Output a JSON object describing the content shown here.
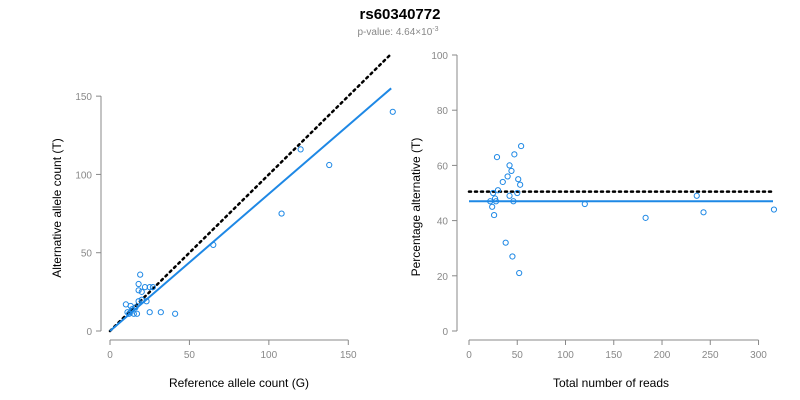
{
  "chart_data": [
    {
      "type": "scatter",
      "title": "rs60340772",
      "subtitle_prefix": "p-value: 4.64×10",
      "subtitle_exponent": "-3",
      "xlabel": "Reference allele count (G)",
      "ylabel": "Alternative allele count (T)",
      "xlim": [
        0,
        175
      ],
      "ylim": [
        0,
        175
      ],
      "xticks": [
        0,
        50,
        100,
        150
      ],
      "yticks": [
        0,
        50,
        100,
        150
      ],
      "points": {
        "x": [
          10,
          11,
          12,
          13,
          14,
          15,
          13,
          16,
          17,
          18,
          18,
          18,
          19,
          20,
          20,
          22,
          23,
          25,
          25,
          27,
          32,
          41,
          65,
          108,
          120,
          138,
          178
        ],
        "y": [
          17,
          12,
          11,
          12,
          14,
          11,
          16,
          15,
          11,
          19,
          26,
          30,
          36,
          25,
          20,
          28,
          19,
          28,
          12,
          28,
          12,
          11,
          55,
          75,
          116,
          106,
          140
        ]
      },
      "reference_line": {
        "name": "expected",
        "style": "dotted",
        "color": "#000000",
        "x": [
          0,
          177
        ],
        "y": [
          0,
          177
        ]
      },
      "fit_line": {
        "name": "fit",
        "style": "solid",
        "color": "#1e88e5",
        "x": [
          0,
          177
        ],
        "y": [
          0,
          155
        ]
      },
      "point_color": "#1e88e5"
    },
    {
      "type": "scatter",
      "xlabel": "Total number of reads",
      "ylabel": "Percentage alternative (T)",
      "xlim": [
        0,
        315
      ],
      "ylim": [
        0,
        100
      ],
      "xticks": [
        0,
        50,
        100,
        150,
        200,
        250,
        300
      ],
      "yticks": [
        0,
        20,
        40,
        60,
        80,
        100
      ],
      "points": {
        "x": [
          22,
          24,
          25,
          26,
          27,
          28,
          29,
          30,
          35,
          38,
          40,
          42,
          42,
          44,
          45,
          46,
          47,
          50,
          51,
          52,
          53,
          54,
          120,
          183,
          236,
          243,
          316
        ],
        "y": [
          47,
          45,
          50,
          42,
          48,
          47,
          63,
          51,
          54,
          32,
          56,
          49,
          60,
          58,
          27,
          47,
          64,
          50,
          55,
          21,
          53,
          67,
          46,
          41,
          49,
          43,
          44
        ]
      },
      "reference_line": {
        "name": "expected",
        "style": "dotted",
        "color": "#000000",
        "x": [
          0,
          315
        ],
        "y": [
          50.5,
          50.5
        ]
      },
      "fit_line": {
        "name": "fit",
        "style": "solid",
        "color": "#1e88e5",
        "x": [
          0,
          315
        ],
        "y": [
          47,
          47
        ]
      },
      "point_color": "#1e88e5"
    }
  ]
}
